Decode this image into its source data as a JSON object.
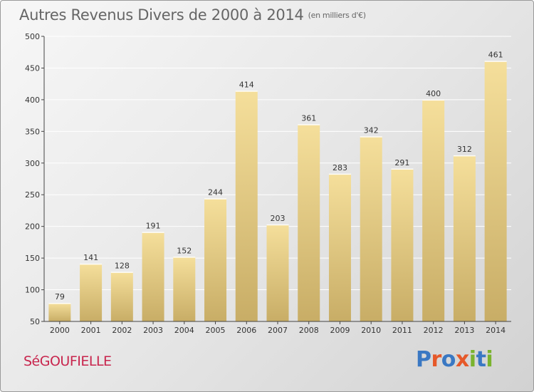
{
  "header": {
    "title": "Autres Revenus Divers de 2000 à 2014",
    "subtitle": "(en milliers d'€)"
  },
  "commune": "SéGOUFIELLE",
  "logo": {
    "text": "Proxiti",
    "letter_colors": [
      "#3a78c3",
      "#e6592a",
      "#3a78c3",
      "#e6592a",
      "#7ab32e",
      "#3a78c3",
      "#7ab32e"
    ]
  },
  "colors": {
    "bar_top": "#f5df9b",
    "bar_bottom": "#c8ad66",
    "bar_shade": "#d5bd7a",
    "accent": "#c8254d"
  },
  "chart_data": {
    "type": "bar",
    "title": "Autres Revenus Divers de 2000 à 2014",
    "subtitle": "(en milliers d'€)",
    "categories": [
      "2000",
      "2001",
      "2002",
      "2003",
      "2004",
      "2005",
      "2006",
      "2007",
      "2008",
      "2009",
      "2010",
      "2011",
      "2012",
      "2013",
      "2014"
    ],
    "values": [
      79,
      141,
      128,
      191,
      152,
      244,
      414,
      203,
      361,
      283,
      342,
      291,
      400,
      312,
      461
    ],
    "ylim": [
      50,
      500
    ],
    "yticks": [
      50,
      100,
      150,
      200,
      250,
      300,
      350,
      400,
      450,
      500
    ],
    "grid": true,
    "data_labels": true
  }
}
